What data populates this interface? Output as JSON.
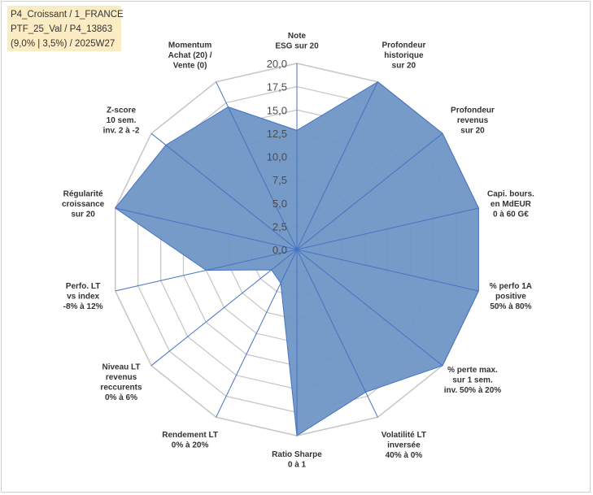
{
  "info_box": {
    "line1": "P4_Croissant / 1_FRANCE",
    "line2": "PTF_25_Val / P4_13863",
    "line3": "(9,0% | 3,5%) / 2025W27"
  },
  "colors": {
    "fill": "#7096c6",
    "stroke": "#4472c4",
    "grid": "#c8c8c8",
    "info_bg": "#fcecc4"
  },
  "chart_data": {
    "type": "radar",
    "title": "",
    "rmin": 0,
    "rmax": 20,
    "tick_step": 2.5,
    "tick_labels": [
      "0,0",
      "2,5",
      "5,0",
      "7,5",
      "10,0",
      "12,5",
      "15,0",
      "17,5",
      "20,0"
    ],
    "grid_shape": "polygon",
    "legend": "none",
    "axes": [
      {
        "lines": [
          "Note",
          "ESG sur 20"
        ]
      },
      {
        "lines": [
          "Profondeur",
          "historique",
          "sur 20"
        ]
      },
      {
        "lines": [
          "Profondeur",
          "revenus",
          "sur 20"
        ]
      },
      {
        "lines": [
          "Capi. bours.",
          "en MdEUR",
          "0 à 60 G€"
        ]
      },
      {
        "lines": [
          "% perfo 1A",
          "positive",
          "50% à 80%"
        ]
      },
      {
        "lines": [
          "% perte max.",
          "sur 1 sem.",
          "inv. 50% à 20%"
        ]
      },
      {
        "lines": [
          "Volatilité LT",
          "inversée",
          "40% à 0%"
        ]
      },
      {
        "lines": [
          "Ratio Sharpe",
          "0 à 1"
        ]
      },
      {
        "lines": [
          "Rendement LT",
          "0% à 20%"
        ]
      },
      {
        "lines": [
          "Niveau LT",
          "revenus",
          "reccurents",
          "0% à 6%"
        ]
      },
      {
        "lines": [
          "Perfo. LT",
          "vs index",
          "-8% à 12%"
        ]
      },
      {
        "lines": [
          "Régularité",
          "croissance",
          "sur 20"
        ]
      },
      {
        "lines": [
          "Z-score",
          "10 sem.",
          "inv. 2 à -2"
        ]
      },
      {
        "lines": [
          "Momentum",
          "Achat (20) /",
          "Vente (0)"
        ]
      }
    ],
    "series": [
      {
        "values": [
          12.8,
          20.0,
          20.0,
          20.0,
          20.0,
          20.0,
          17.0,
          20.0,
          4.0,
          3.5,
          10.0,
          20.0,
          18.0,
          17.0
        ]
      }
    ]
  }
}
